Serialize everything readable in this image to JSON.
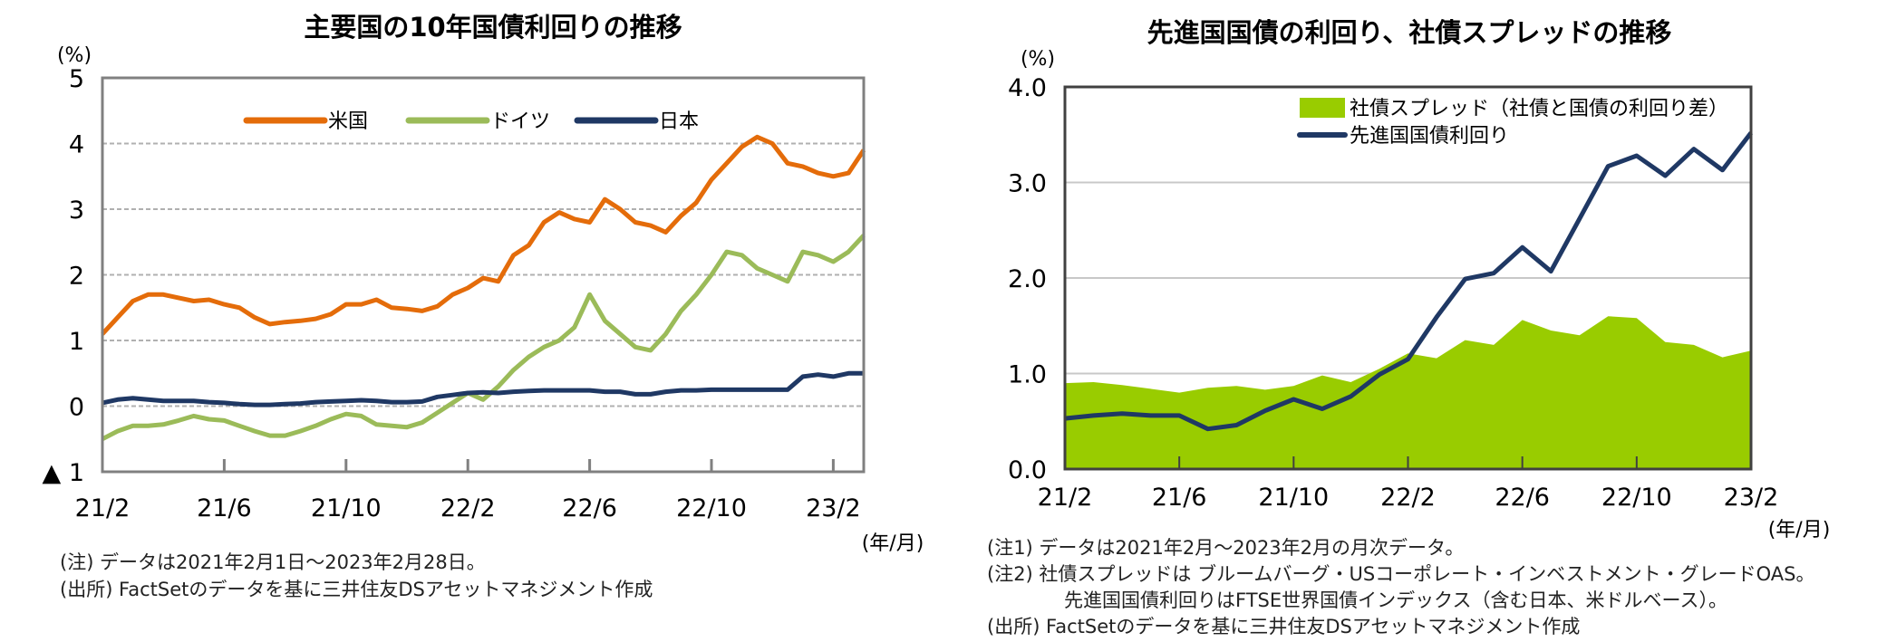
{
  "chart_data": [
    {
      "type": "line",
      "title": "主要国の10年国債利回りの推移",
      "ylabel": "(%)",
      "xlabel": "(年/月)",
      "ylim": [
        -1,
        5
      ],
      "yticks": [
        5,
        4,
        3,
        2,
        1,
        0,
        -1
      ],
      "ytick_labels": [
        "5",
        "4",
        "3",
        "2",
        "1",
        "0",
        "▲ 1"
      ],
      "xlim_months": [
        0,
        25
      ],
      "xticks": [
        "21/2",
        "21/6",
        "21/10",
        "22/2",
        "22/6",
        "22/10",
        "23/2"
      ],
      "x_step_months": 0.5,
      "grid": true,
      "legend_position": "top-center",
      "series": [
        {
          "name": "米国",
          "color": "#E46C0A",
          "values": [
            1.1,
            1.35,
            1.6,
            1.7,
            1.7,
            1.65,
            1.6,
            1.62,
            1.55,
            1.5,
            1.35,
            1.25,
            1.28,
            1.3,
            1.33,
            1.4,
            1.55,
            1.55,
            1.62,
            1.5,
            1.48,
            1.45,
            1.52,
            1.7,
            1.8,
            1.95,
            1.9,
            2.3,
            2.45,
            2.8,
            2.95,
            2.85,
            2.8,
            3.15,
            3.0,
            2.8,
            2.75,
            2.65,
            2.9,
            3.1,
            3.45,
            3.7,
            3.95,
            4.1,
            4.0,
            3.7,
            3.65,
            3.55,
            3.5,
            3.55,
            3.9
          ]
        },
        {
          "name": "ドイツ",
          "color": "#9BBB59",
          "values": [
            -0.5,
            -0.38,
            -0.3,
            -0.3,
            -0.28,
            -0.22,
            -0.15,
            -0.2,
            -0.22,
            -0.3,
            -0.38,
            -0.45,
            -0.45,
            -0.38,
            -0.3,
            -0.2,
            -0.12,
            -0.15,
            -0.28,
            -0.3,
            -0.32,
            -0.25,
            -0.1,
            0.05,
            0.2,
            0.1,
            0.3,
            0.55,
            0.75,
            0.9,
            1.0,
            1.2,
            1.7,
            1.3,
            1.1,
            0.9,
            0.85,
            1.1,
            1.45,
            1.7,
            2.0,
            2.35,
            2.3,
            2.1,
            2.0,
            1.9,
            2.35,
            2.3,
            2.2,
            2.35,
            2.6
          ]
        },
        {
          "name": "日本",
          "color": "#1F3864",
          "values": [
            0.05,
            0.1,
            0.12,
            0.1,
            0.08,
            0.08,
            0.08,
            0.06,
            0.05,
            0.03,
            0.02,
            0.02,
            0.03,
            0.04,
            0.06,
            0.07,
            0.08,
            0.09,
            0.08,
            0.06,
            0.06,
            0.07,
            0.14,
            0.17,
            0.2,
            0.21,
            0.2,
            0.22,
            0.23,
            0.24,
            0.24,
            0.24,
            0.24,
            0.22,
            0.22,
            0.18,
            0.18,
            0.22,
            0.24,
            0.24,
            0.25,
            0.25,
            0.25,
            0.25,
            0.25,
            0.25,
            0.45,
            0.48,
            0.45,
            0.5,
            0.5
          ]
        }
      ],
      "notes": [
        "(注) データは2021年2月1日～2023年2月28日。",
        "(出所) FactSetのデータを基に三井住友DSアセットマネジメント作成"
      ]
    },
    {
      "type": "area+line",
      "title": "先進国国債の利回り、社債スプレッドの推移",
      "ylabel": "(%)",
      "xlabel": "(年/月)",
      "ylim": [
        0,
        4
      ],
      "yticks": [
        "4.0",
        "3.0",
        "2.0",
        "1.0",
        "0.0"
      ],
      "xticks": [
        "21/2",
        "21/6",
        "21/10",
        "22/2",
        "22/6",
        "22/10",
        "23/2"
      ],
      "grid": true,
      "legend_position": "top-right",
      "series": [
        {
          "name": "社債スプレッド（社債と国債の利回り差）",
          "type": "area",
          "color": "#99CC00",
          "values": [
            0.9,
            0.91,
            0.88,
            0.84,
            0.8,
            0.85,
            0.87,
            0.83,
            0.87,
            0.98,
            0.91,
            1.05,
            1.21,
            1.16,
            1.35,
            1.3,
            1.56,
            1.45,
            1.4,
            1.6,
            1.58,
            1.33,
            1.3,
            1.17,
            1.24
          ]
        },
        {
          "name": "先進国国債利回り",
          "type": "line",
          "color": "#1F3864",
          "values": [
            0.53,
            0.56,
            0.58,
            0.56,
            0.56,
            0.42,
            0.46,
            0.61,
            0.73,
            0.63,
            0.76,
            0.99,
            1.15,
            1.59,
            1.99,
            2.05,
            2.32,
            2.07,
            2.62,
            3.17,
            3.28,
            3.07,
            3.35,
            3.13,
            3.52
          ]
        }
      ],
      "notes": [
        "(注1) データは2021年2月～2023年2月の月次データ。",
        "(注2) 社債スプレッドは ブルームバーグ・USコーポレート・インベストメント・グレードOAS。",
        "先進国国債利回りはFTSE世界国債インデックス（含む日本、米ドルベース）。",
        "(出所) FactSetのデータを基に三井住友DSアセットマネジメント作成"
      ]
    }
  ]
}
